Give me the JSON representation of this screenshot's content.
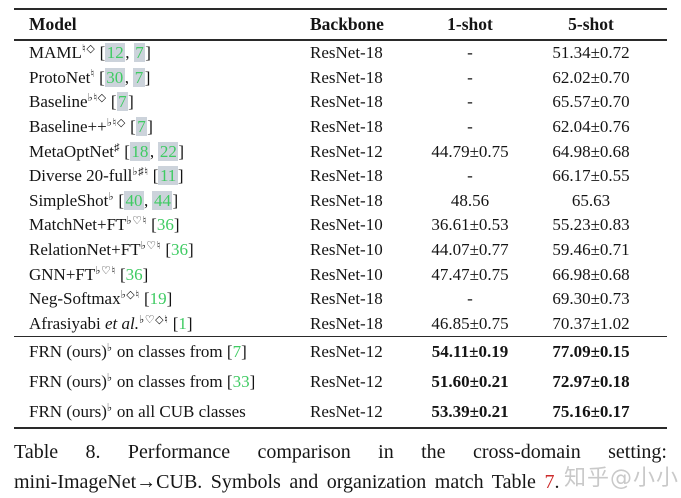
{
  "colors": {
    "citation_green": "#3ecb62",
    "citation_highlight_bg": "#ccd3db",
    "caption_link_red": "#cc2b2b",
    "rule_dark": "#2a2a2a",
    "watermark_gray": "#c9c9c9"
  },
  "table": {
    "headers": [
      "Model",
      "Backbone",
      "1-shot",
      "5-shot"
    ],
    "sections": [
      {
        "name": "baselines",
        "rows": [
          {
            "model": {
              "pre": "MAML",
              "italic": "",
              "sup": "♮◇",
              "mid": " ",
              "refs": [
                {
                  "n": "12",
                  "hl": true
                },
                {
                  "n": "7",
                  "hl": true
                }
              ]
            },
            "backbone": "ResNet-18",
            "one_shot": "-",
            "five_shot": "51.34±0.72",
            "bold_values": false
          },
          {
            "model": {
              "pre": "ProtoNet",
              "italic": "",
              "sup": "♮",
              "mid": " ",
              "refs": [
                {
                  "n": "30",
                  "hl": true
                },
                {
                  "n": "7",
                  "hl": true
                }
              ]
            },
            "backbone": "ResNet-18",
            "one_shot": "-",
            "five_shot": "62.02±0.70",
            "bold_values": false
          },
          {
            "model": {
              "pre": "Baseline",
              "italic": "",
              "sup": "♭♮◇",
              "mid": " ",
              "refs": [
                {
                  "n": "7",
                  "hl": true
                }
              ]
            },
            "backbone": "ResNet-18",
            "one_shot": "-",
            "five_shot": "65.57±0.70",
            "bold_values": false
          },
          {
            "model": {
              "pre": "Baseline++",
              "italic": "",
              "sup": "♭♮◇",
              "mid": " ",
              "refs": [
                {
                  "n": "7",
                  "hl": true
                }
              ]
            },
            "backbone": "ResNet-18",
            "one_shot": "-",
            "five_shot": "62.04±0.76",
            "bold_values": false
          },
          {
            "model": {
              "pre": "MetaOptNet",
              "italic": "",
              "sup": "♯",
              "mid": " ",
              "refs": [
                {
                  "n": "18",
                  "hl": true
                },
                {
                  "n": "22",
                  "hl": true
                }
              ]
            },
            "backbone": "ResNet-12",
            "one_shot": "44.79±0.75",
            "five_shot": "64.98±0.68",
            "bold_values": false
          },
          {
            "model": {
              "pre": "Diverse 20-full",
              "italic": "",
              "sup": "♭♯♮",
              "mid": " ",
              "refs": [
                {
                  "n": "11",
                  "hl": true
                }
              ]
            },
            "backbone": "ResNet-18",
            "one_shot": "-",
            "five_shot": "66.17±0.55",
            "bold_values": false
          },
          {
            "model": {
              "pre": "SimpleShot",
              "italic": "",
              "sup": "♭",
              "mid": " ",
              "refs": [
                {
                  "n": "40",
                  "hl": true
                },
                {
                  "n": "44",
                  "hl": true
                }
              ]
            },
            "backbone": "ResNet-18",
            "one_shot": "48.56",
            "five_shot": "65.63",
            "bold_values": false
          },
          {
            "model": {
              "pre": "MatchNet+FT",
              "italic": "",
              "sup": "♭♡♮",
              "mid": " ",
              "refs": [
                {
                  "n": "36",
                  "hl": false
                }
              ]
            },
            "backbone": "ResNet-10",
            "one_shot": "36.61±0.53",
            "five_shot": "55.23±0.83",
            "bold_values": false
          },
          {
            "model": {
              "pre": "RelationNet+FT",
              "italic": "",
              "sup": "♭♡♮",
              "mid": " ",
              "refs": [
                {
                  "n": "36",
                  "hl": false
                }
              ]
            },
            "backbone": "ResNet-10",
            "one_shot": "44.07±0.77",
            "five_shot": "59.46±0.71",
            "bold_values": false
          },
          {
            "model": {
              "pre": "GNN+FT",
              "italic": "",
              "sup": "♭♡♮",
              "mid": " ",
              "refs": [
                {
                  "n": "36",
                  "hl": false
                }
              ]
            },
            "backbone": "ResNet-10",
            "one_shot": "47.47±0.75",
            "five_shot": "66.98±0.68",
            "bold_values": false
          },
          {
            "model": {
              "pre": "Neg-Softmax",
              "italic": "",
              "sup": "♭◇♮",
              "mid": " ",
              "refs": [
                {
                  "n": "19",
                  "hl": false
                }
              ]
            },
            "backbone": "ResNet-18",
            "one_shot": "-",
            "five_shot": "69.30±0.73",
            "bold_values": false
          },
          {
            "model": {
              "pre": "Afrasiyabi ",
              "italic": "et al.",
              "sup": "♭♡◇♮",
              "mid": " ",
              "refs": [
                {
                  "n": "1",
                  "hl": false
                }
              ]
            },
            "backbone": "ResNet-18",
            "one_shot": "46.85±0.75",
            "five_shot": "70.37±1.02",
            "bold_values": false
          }
        ]
      },
      {
        "name": "ours",
        "rows": [
          {
            "model": {
              "pre": "FRN (ours)",
              "italic": "",
              "sup": "♭",
              "mid": " on classes from ",
              "refs": [
                {
                  "n": "7",
                  "hl": false
                }
              ]
            },
            "backbone": "ResNet-12",
            "one_shot": "54.11±0.19",
            "five_shot": "77.09±0.15",
            "bold_values": true
          },
          {
            "model": {
              "pre": "FRN (ours)",
              "italic": "",
              "sup": "♭",
              "mid": " on classes from ",
              "refs": [
                {
                  "n": "33",
                  "hl": false
                }
              ]
            },
            "backbone": "ResNet-12",
            "one_shot": "51.60±0.21",
            "five_shot": "72.97±0.18",
            "bold_values": true
          },
          {
            "model": {
              "pre": "FRN (ours)",
              "italic": "",
              "sup": "♭",
              "mid": " on all CUB classes",
              "refs": []
            },
            "backbone": "ResNet-12",
            "one_shot": "53.39±0.21",
            "five_shot": "75.16±0.17",
            "bold_values": true
          }
        ]
      }
    ]
  },
  "caption": {
    "line1": "Table 8. Performance comparison in the cross-domain setting:",
    "line2_pre": "mini-ImageNet→CUB. Symbols and organization match Table ",
    "line2_link": "7",
    "line2_end": "."
  },
  "watermark": "知乎@小小"
}
